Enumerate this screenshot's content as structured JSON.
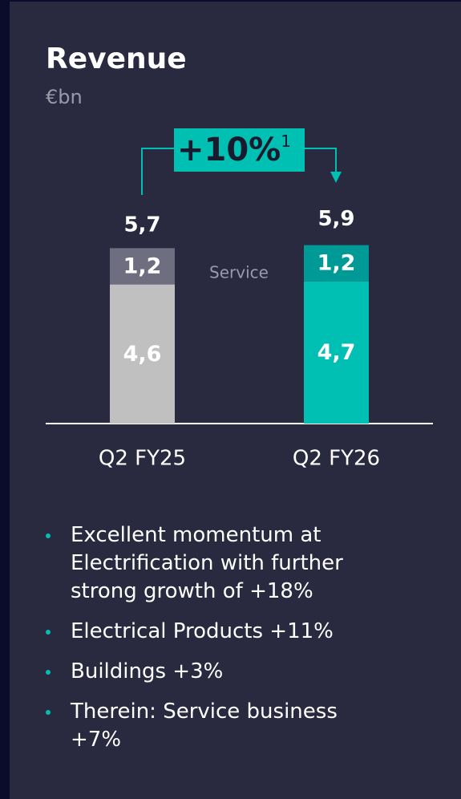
{
  "chart_data": {
    "type": "stacked_bar",
    "title": "Revenue",
    "subtitle": "€bn",
    "categories": [
      "Q2 FY25",
      "Q2 FY26"
    ],
    "series": [
      {
        "colors": [
          "#c0c0c0",
          "#00bfb3"
        ],
        "values": [
          4.6,
          4.7
        ],
        "value_labels": [
          "4,6",
          "4,7"
        ]
      },
      {
        "name": "Service",
        "colors": [
          "#6e6e80",
          "#009a96"
        ],
        "values": [
          1.2,
          1.2
        ],
        "value_labels": [
          "1,2",
          "1,2"
        ]
      }
    ],
    "totals": [
      5.7,
      5.9
    ],
    "total_labels": [
      "5,7",
      "5,9"
    ],
    "growth_label": "+10%",
    "footnote_mark": "1",
    "accent": "#00bfb3"
  },
  "bullets": [
    "Excellent momentum at Electrification with further strong growth of +18%",
    "Electrical Products +11%",
    "Buildings +3%",
    "Therein: Service business +7%"
  ]
}
